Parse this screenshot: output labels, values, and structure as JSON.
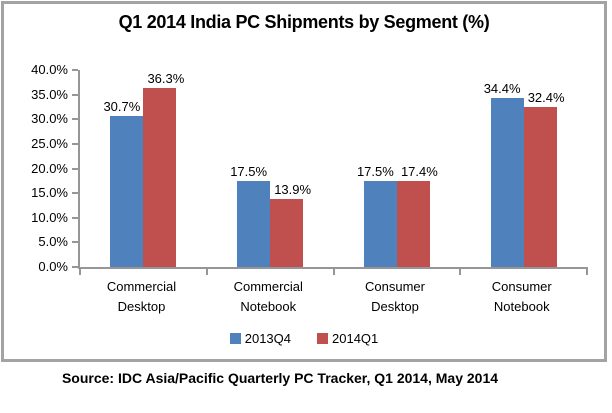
{
  "title": "Q1 2014 India PC Shipments by Segment (%)",
  "source": "Source: IDC Asia/Pacific Quarterly PC Tracker, Q1 2014, May 2014",
  "colors": {
    "series_2013q4": "#4f81bd",
    "series_2014q1": "#c0504d",
    "axis": "#969696",
    "frame_border": "#a3a3a3"
  },
  "chart_data": {
    "type": "bar",
    "title": "Q1 2014 India PC Shipments by Segment (%)",
    "categories": [
      "Commercial Desktop",
      "Commercial Notebook",
      "Consumer Desktop",
      "Consumer Notebook"
    ],
    "series": [
      {
        "name": "2013Q4",
        "color": "#4f81bd",
        "values": [
          30.7,
          17.5,
          17.5,
          34.4
        ],
        "labels": [
          "30.7%",
          "17.5%",
          "17.5%",
          "34.4%"
        ]
      },
      {
        "name": "2014Q1",
        "color": "#c0504d",
        "values": [
          36.3,
          13.9,
          17.4,
          32.4
        ],
        "labels": [
          "36.3%",
          "13.9%",
          "17.4%",
          "32.4%"
        ]
      }
    ],
    "xlabel": "",
    "ylabel": "",
    "ylim": [
      0,
      40
    ],
    "ytick_step": 5,
    "ytick_labels": [
      "0.0%",
      "5.0%",
      "10.0%",
      "15.0%",
      "20.0%",
      "25.0%",
      "30.0%",
      "35.0%",
      "40.0%"
    ],
    "grid": false,
    "legend_position": "bottom",
    "data_labels": "outside-end"
  }
}
